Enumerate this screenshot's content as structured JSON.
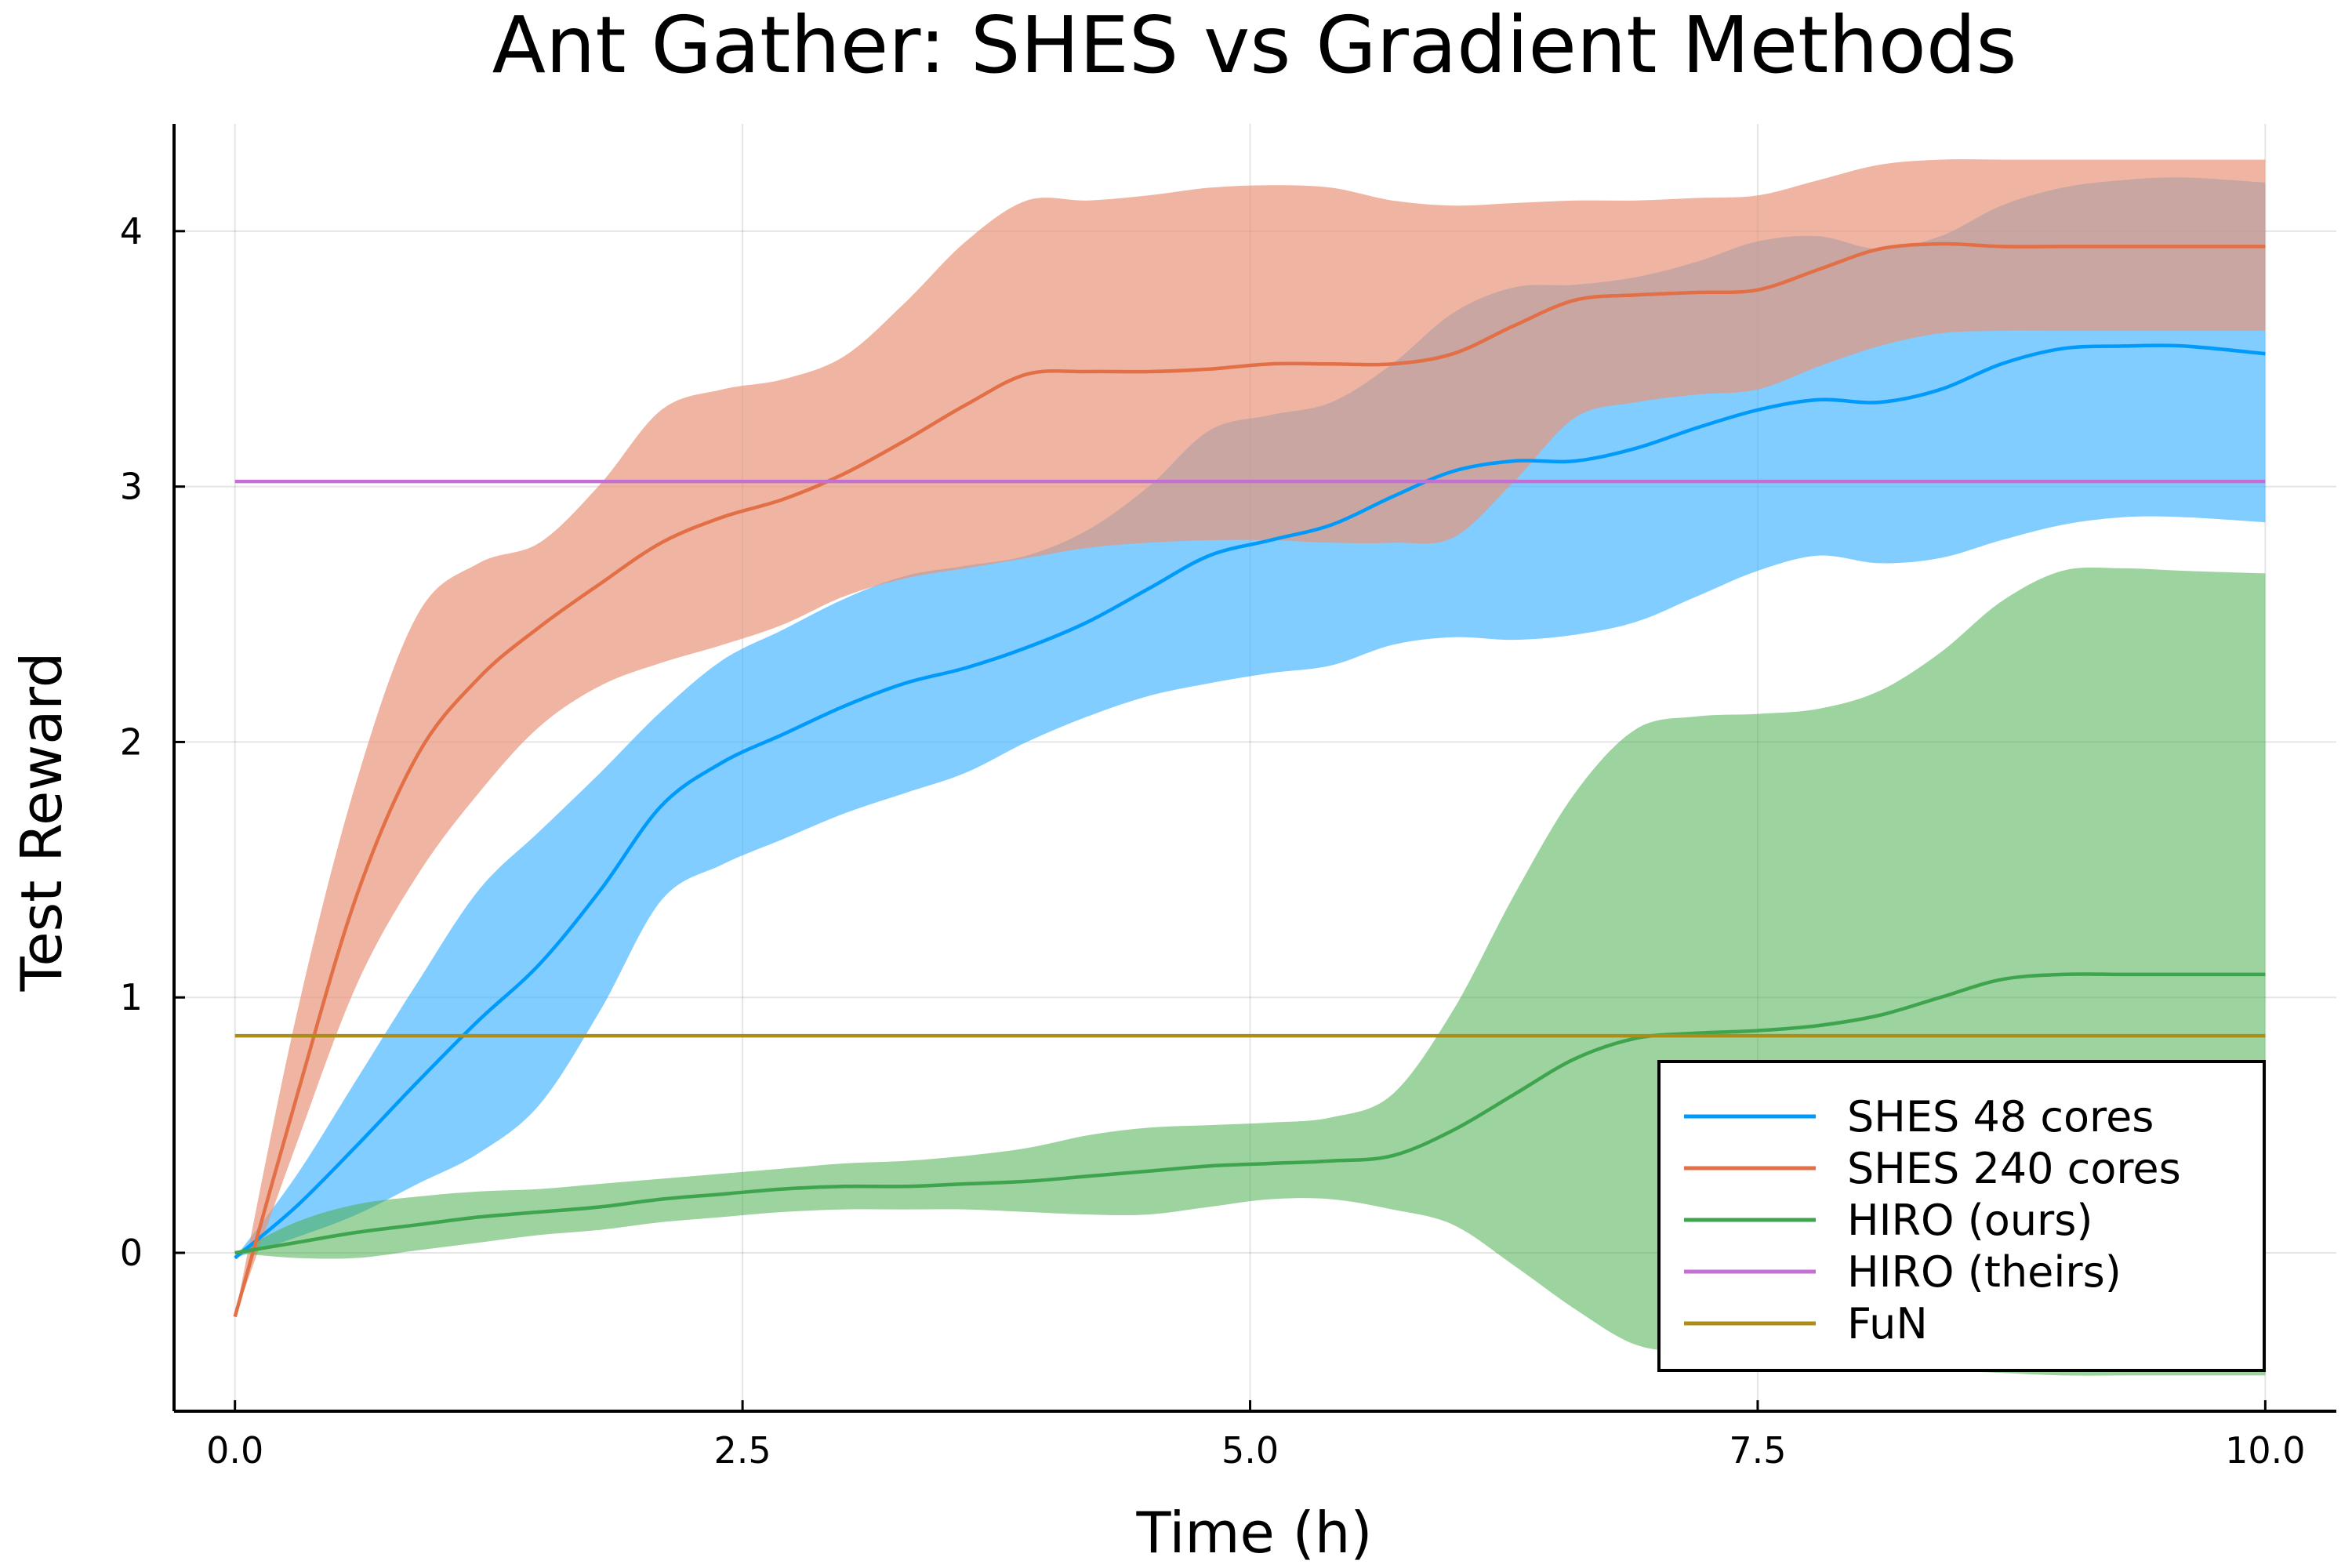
{
  "chart_data": {
    "type": "line",
    "title": "Ant Gather: SHES vs Gradient Methods",
    "xlabel": "Time (h)",
    "ylabel": "Test Reward",
    "xlim": [
      -0.3,
      10.35
    ],
    "ylim": [
      -0.62,
      4.42
    ],
    "xticks": [
      0,
      2.5,
      5,
      7.5,
      10
    ],
    "xtick_labels": [
      "0.0",
      "2.5",
      "5.0",
      "7.5",
      "10.0"
    ],
    "yticks": [
      0,
      1,
      2,
      3,
      4
    ],
    "ytick_labels": [
      "0",
      "1",
      "2",
      "3",
      "4"
    ],
    "grid": true,
    "legend_position": "bottom-right",
    "series": [
      {
        "name": "SHES 48 cores",
        "color": "#009AFA",
        "band_color": "#3DB2FF",
        "band_opacity": 0.65,
        "x": [
          0,
          0.3,
          0.6,
          0.9,
          1.2,
          1.5,
          1.8,
          2.1,
          2.4,
          2.7,
          3.0,
          3.3,
          3.6,
          3.9,
          4.2,
          4.5,
          4.8,
          5.1,
          5.4,
          5.7,
          6.0,
          6.3,
          6.6,
          6.9,
          7.2,
          7.5,
          7.8,
          8.1,
          8.4,
          8.7,
          9.0,
          9.3,
          9.6,
          10.0
        ],
        "mean": [
          -0.02,
          0.18,
          0.42,
          0.67,
          0.91,
          1.13,
          1.42,
          1.75,
          1.92,
          2.03,
          2.14,
          2.23,
          2.29,
          2.37,
          2.47,
          2.6,
          2.73,
          2.79,
          2.85,
          2.96,
          3.06,
          3.1,
          3.1,
          3.15,
          3.23,
          3.3,
          3.34,
          3.33,
          3.38,
          3.48,
          3.54,
          3.55,
          3.55,
          3.52
        ],
        "lower": [
          -0.02,
          0.06,
          0.15,
          0.27,
          0.39,
          0.58,
          0.95,
          1.38,
          1.52,
          1.62,
          1.72,
          1.8,
          1.88,
          2.0,
          2.1,
          2.18,
          2.23,
          2.27,
          2.3,
          2.38,
          2.41,
          2.4,
          2.42,
          2.47,
          2.57,
          2.67,
          2.73,
          2.7,
          2.72,
          2.79,
          2.85,
          2.88,
          2.88,
          2.86
        ],
        "upper": [
          -0.02,
          0.3,
          0.68,
          1.06,
          1.42,
          1.65,
          1.88,
          2.12,
          2.32,
          2.44,
          2.56,
          2.65,
          2.69,
          2.73,
          2.83,
          3.0,
          3.22,
          3.28,
          3.33,
          3.48,
          3.68,
          3.78,
          3.79,
          3.82,
          3.88,
          3.96,
          3.98,
          3.93,
          3.98,
          4.1,
          4.17,
          4.2,
          4.21,
          4.19
        ]
      },
      {
        "name": "SHES 240 cores",
        "color": "#E26F46",
        "band_color": "#E8957A",
        "band_opacity": 0.7,
        "x": [
          0,
          0.3,
          0.6,
          0.9,
          1.2,
          1.5,
          1.8,
          2.1,
          2.4,
          2.7,
          3.0,
          3.3,
          3.6,
          3.9,
          4.2,
          4.5,
          4.8,
          5.1,
          5.4,
          5.7,
          6.0,
          6.3,
          6.6,
          6.9,
          7.2,
          7.5,
          7.8,
          8.1,
          8.4,
          8.7,
          9.0,
          9.3,
          9.6,
          10.0
        ],
        "mean": [
          -0.25,
          0.6,
          1.4,
          1.95,
          2.25,
          2.45,
          2.62,
          2.78,
          2.88,
          2.95,
          3.05,
          3.18,
          3.32,
          3.44,
          3.45,
          3.45,
          3.46,
          3.48,
          3.48,
          3.48,
          3.52,
          3.63,
          3.73,
          3.75,
          3.76,
          3.77,
          3.85,
          3.93,
          3.95,
          3.94,
          3.94,
          3.94,
          3.94,
          3.94
        ],
        "lower": [
          -0.25,
          0.42,
          1.05,
          1.48,
          1.8,
          2.06,
          2.22,
          2.31,
          2.38,
          2.46,
          2.57,
          2.64,
          2.68,
          2.72,
          2.76,
          2.78,
          2.79,
          2.79,
          2.78,
          2.78,
          2.8,
          3.02,
          3.27,
          3.33,
          3.36,
          3.38,
          3.47,
          3.55,
          3.6,
          3.61,
          3.61,
          3.61,
          3.61,
          3.61
        ],
        "upper": [
          -0.25,
          0.92,
          1.85,
          2.5,
          2.7,
          2.78,
          3.01,
          3.3,
          3.38,
          3.42,
          3.51,
          3.72,
          3.96,
          4.12,
          4.12,
          4.14,
          4.17,
          4.18,
          4.17,
          4.12,
          4.1,
          4.11,
          4.12,
          4.12,
          4.13,
          4.14,
          4.2,
          4.26,
          4.28,
          4.28,
          4.28,
          4.28,
          4.28,
          4.28
        ]
      },
      {
        "name": "HIRO (ours)",
        "color": "#3EA44E",
        "band_color": "#4CAF50",
        "band_opacity": 0.55,
        "x": [
          0,
          0.3,
          0.6,
          0.9,
          1.2,
          1.5,
          1.8,
          2.1,
          2.4,
          2.7,
          3.0,
          3.3,
          3.6,
          3.9,
          4.2,
          4.5,
          4.8,
          5.1,
          5.4,
          5.7,
          6.0,
          6.3,
          6.6,
          6.9,
          7.2,
          7.5,
          7.8,
          8.1,
          8.4,
          8.7,
          9.0,
          9.3,
          9.6,
          10.0
        ],
        "mean": [
          0.0,
          0.04,
          0.08,
          0.11,
          0.14,
          0.16,
          0.18,
          0.21,
          0.23,
          0.25,
          0.26,
          0.26,
          0.27,
          0.28,
          0.3,
          0.32,
          0.34,
          0.35,
          0.36,
          0.38,
          0.48,
          0.62,
          0.76,
          0.84,
          0.86,
          0.87,
          0.89,
          0.93,
          1.0,
          1.07,
          1.09,
          1.09,
          1.09,
          1.09
        ],
        "lower": [
          0.0,
          -0.02,
          -0.02,
          0.01,
          0.04,
          0.07,
          0.09,
          0.12,
          0.14,
          0.16,
          0.17,
          0.17,
          0.17,
          0.16,
          0.15,
          0.15,
          0.18,
          0.21,
          0.21,
          0.17,
          0.11,
          -0.05,
          -0.22,
          -0.36,
          -0.39,
          -0.4,
          -0.43,
          -0.45,
          -0.46,
          -0.47,
          -0.48,
          -0.48,
          -0.48,
          -0.48
        ],
        "upper": [
          0.0,
          0.12,
          0.19,
          0.22,
          0.24,
          0.25,
          0.27,
          0.29,
          0.31,
          0.33,
          0.35,
          0.36,
          0.38,
          0.41,
          0.46,
          0.49,
          0.5,
          0.51,
          0.53,
          0.62,
          0.95,
          1.4,
          1.8,
          2.05,
          2.1,
          2.11,
          2.13,
          2.2,
          2.35,
          2.55,
          2.67,
          2.68,
          2.67,
          2.66
        ]
      },
      {
        "name": "HIRO (theirs)",
        "color": "#C271D2",
        "x": [
          0,
          10
        ],
        "mean": [
          3.02,
          3.02
        ]
      },
      {
        "name": "FuN",
        "color": "#AC8D18",
        "x": [
          0,
          10
        ],
        "mean": [
          0.85,
          0.85
        ]
      }
    ]
  }
}
